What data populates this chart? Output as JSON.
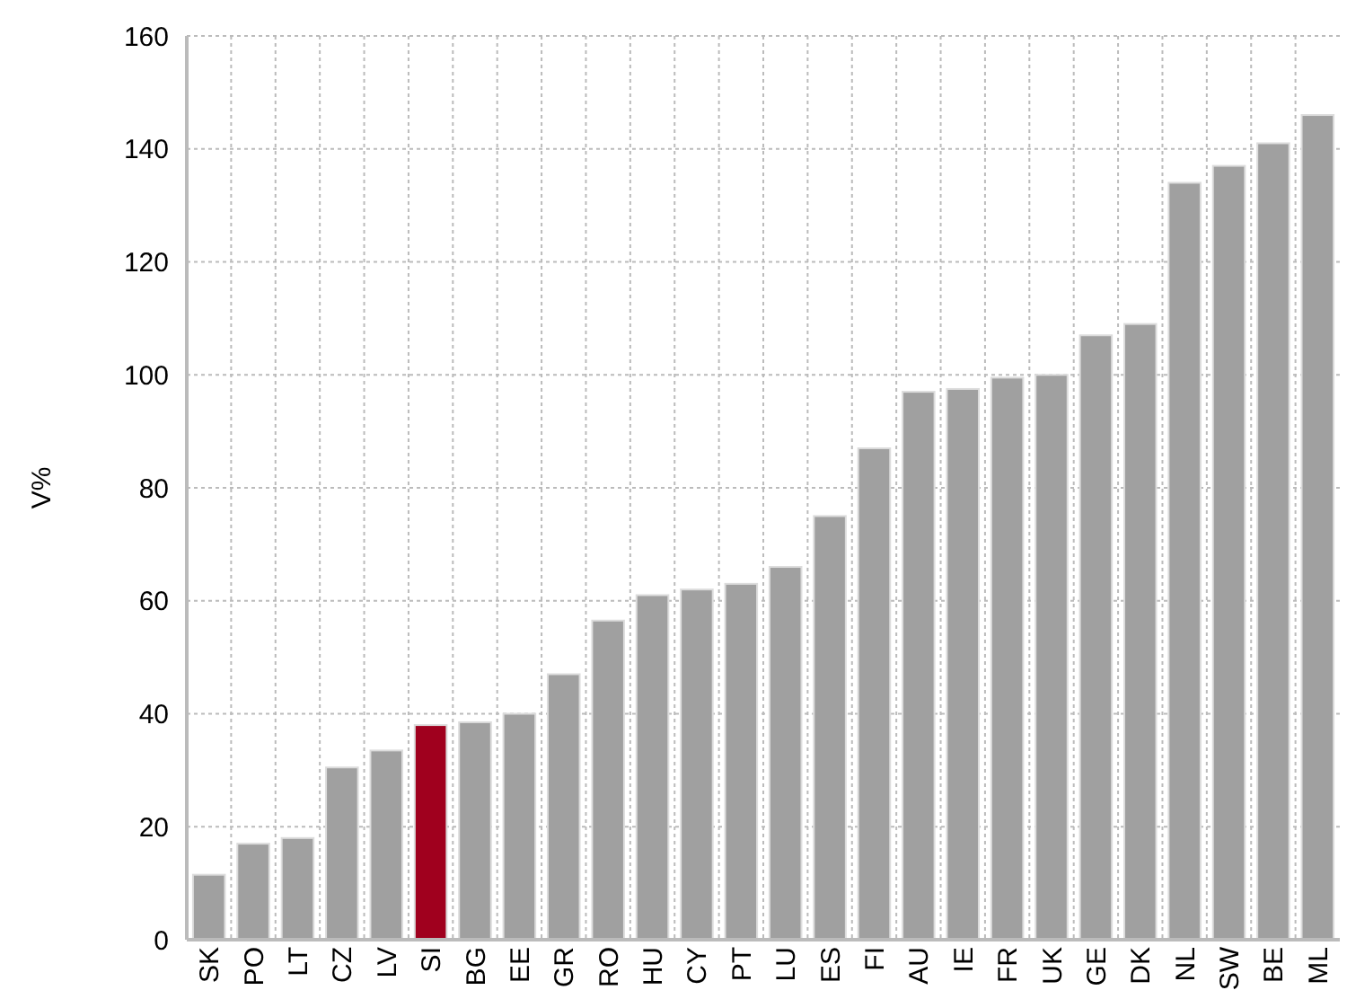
{
  "chart_data": {
    "type": "bar",
    "ylabel": "V%",
    "categories": [
      "SK",
      "PO",
      "LT",
      "CZ",
      "LV",
      "SI",
      "BG",
      "EE",
      "GR",
      "RO",
      "HU",
      "CY",
      "PT",
      "LU",
      "ES",
      "FI",
      "AU",
      "IE",
      "FR",
      "UK",
      "GE",
      "DK",
      "NL",
      "SW",
      "BE",
      "ML"
    ],
    "values": [
      11.5,
      17,
      18,
      30.5,
      33.5,
      38,
      38.5,
      40,
      47,
      56.5,
      61,
      62,
      63,
      66,
      75,
      87,
      97,
      97.5,
      99.5,
      100,
      107,
      109,
      134,
      137,
      141,
      146
    ],
    "colors": [
      "#a0a0a0",
      "#a0a0a0",
      "#a0a0a0",
      "#a0a0a0",
      "#a0a0a0",
      "#a0001e",
      "#a0a0a0",
      "#a0a0a0",
      "#a0a0a0",
      "#a0a0a0",
      "#a0a0a0",
      "#a0a0a0",
      "#a0a0a0",
      "#a0a0a0",
      "#a0a0a0",
      "#a0a0a0",
      "#a0a0a0",
      "#a0a0a0",
      "#a0a0a0",
      "#a0a0a0",
      "#a0a0a0",
      "#a0a0a0",
      "#a0a0a0",
      "#a0a0a0",
      "#a0a0a0",
      "#a0a0a0"
    ],
    "ylim": [
      0,
      160
    ],
    "yticks": [
      0,
      20,
      40,
      60,
      80,
      100,
      120,
      140,
      160
    ],
    "grid": true
  }
}
